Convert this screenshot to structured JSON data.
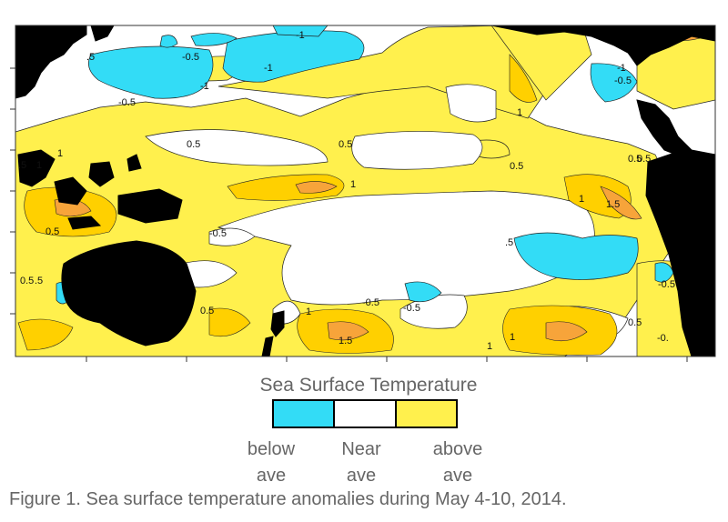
{
  "map": {
    "title": "Sea Surface Temperature",
    "colors": {
      "below": "#33dcf6",
      "near": "#ffffff",
      "above": "#fff04d",
      "warm": "#ffd000",
      "warmer": "#f7a43a",
      "land": "#000000"
    },
    "contour_labels": [
      "-1",
      "-0.5",
      ".5",
      "-1",
      "-1",
      "-0.5",
      "1",
      "-0.5",
      "-1",
      ".5",
      "0.5",
      "1",
      "1",
      "0.5",
      "1",
      "0.5",
      "0.5",
      "0.5",
      "1",
      "1.5",
      "0.5",
      "-0.5",
      ".5",
      "0.5",
      ".5",
      "-0.5",
      "-0.5",
      "0.5",
      "1",
      "-0.5",
      "1.5",
      "1",
      "0.5",
      "-0.",
      "1"
    ]
  },
  "legend": {
    "title": "Sea Surface Temperature",
    "categories": [
      {
        "line1": "below",
        "line2": "ave",
        "color": "#33dcf6"
      },
      {
        "line1": "Near",
        "line2": "ave",
        "color": "#ffffff"
      },
      {
        "line1": "above",
        "line2": "ave",
        "color": "#fff04d"
      }
    ]
  },
  "caption": "Figure 1. Sea surface temperature anomalies during May 4-10, 2014."
}
